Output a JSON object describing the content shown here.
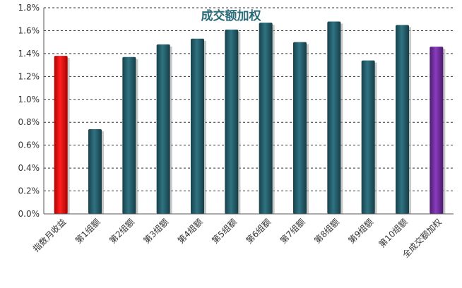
{
  "chart_data": {
    "type": "bar",
    "title": "成交额加权",
    "xlabel": "",
    "ylabel": "",
    "ylim": [
      0,
      1.8
    ],
    "y_tick_step": 0.2,
    "y_tick_format": "percent_1dp",
    "grid": true,
    "categories": [
      "指数月收益",
      "第1组额",
      "第2组额",
      "第3组额",
      "第4组额",
      "第5组额",
      "第6组额",
      "第7组额",
      "第8组额",
      "第9组额",
      "第10组额",
      "全成交额加权"
    ],
    "values": [
      1.38,
      0.74,
      1.37,
      1.48,
      1.53,
      1.61,
      1.67,
      1.5,
      1.68,
      1.34,
      1.65,
      1.46
    ],
    "value_unit": "%",
    "bar_colors": [
      "#e00000",
      "#1e5560",
      "#1e5560",
      "#1e5560",
      "#1e5560",
      "#1e5560",
      "#1e5560",
      "#1e5560",
      "#1e5560",
      "#1e5560",
      "#1e5560",
      "#6a2c91"
    ]
  }
}
